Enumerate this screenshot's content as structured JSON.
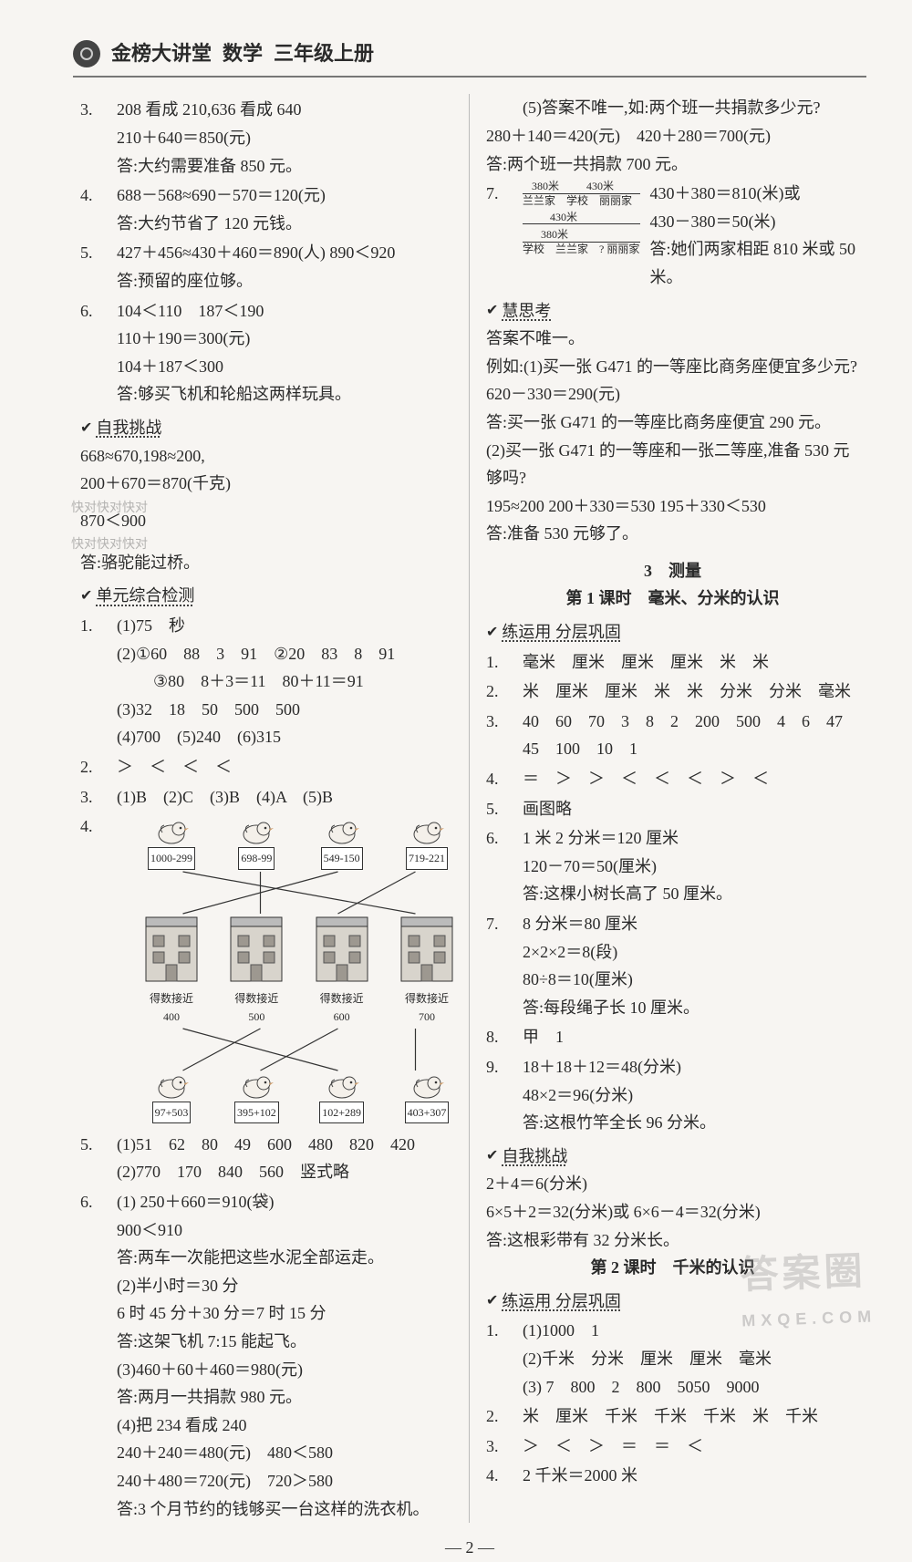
{
  "header": {
    "brand": "金榜大讲堂",
    "subject": "数学",
    "grade": "三年级上册"
  },
  "left": {
    "q3": {
      "l1": "208 看成 210,636 看成 640",
      "l2": "210＋640＝850(元)",
      "l3": "答:大约需要准备 850 元。"
    },
    "q4": {
      "l1": "688－568≈690－570＝120(元)",
      "l2": "答:大约节省了 120 元钱。"
    },
    "q5": {
      "l1": "427＋456≈430＋460＝890(人) 890＜920",
      "l2": "答:预留的座位够。"
    },
    "q6": {
      "l1": "104＜110　187＜190",
      "l2": "110＋190＝300(元)",
      "l3": "104＋187＜300",
      "l4": "答:够买飞机和轮船这两样玩具。"
    },
    "selfChallenge": {
      "hdr": "自我挑战",
      "l1": "668≈670,198≈200,",
      "l2": "200＋670＝870(千克)",
      "ghost1": "快对快对快对",
      "l3": "870＜900",
      "ghost2": "快对快对快对",
      "l4": "答:骆驼能过桥。"
    },
    "unitTest": {
      "hdr": "单元综合检测",
      "q1": {
        "a": "(1)75　秒",
        "b": "(2)①60　88　3　91　②20　83　8　91",
        "c": "③80　8＋3＝11　80＋11＝91",
        "d": "(3)32　18　50　500　500",
        "e": "(4)700　(5)240　(6)315"
      },
      "q2": "＞　＜　＜　＜",
      "q3": "(1)B　(2)C　(3)B　(4)A　(5)B",
      "q4": {
        "topLabels": [
          "1000-299",
          "698-99",
          "549-150",
          "719-221"
        ],
        "midLabels": [
          "得数接近400",
          "得数接近500",
          "得数接近600",
          "得数接近700"
        ],
        "botLabels": [
          "97+503",
          "395+102",
          "102+289",
          "403+307"
        ],
        "matchesTop": [
          [
            0,
            3
          ],
          [
            1,
            1
          ],
          [
            2,
            0
          ],
          [
            3,
            2
          ]
        ],
        "matchesBot": [
          [
            0,
            1
          ],
          [
            1,
            2
          ],
          [
            2,
            0
          ],
          [
            3,
            3
          ]
        ],
        "colors": {
          "line": "#333",
          "chickFill": "#f4f0ea",
          "chickStroke": "#444"
        }
      },
      "q5": {
        "a": "(1)51　62　80　49　600　480　820　420",
        "b": "(2)770　170　840　560　竖式略"
      },
      "q6": {
        "a1": "(1) 250＋660＝910(袋)",
        "a2": "900＜910",
        "a3": "答:两车一次能把这些水泥全部运走。",
        "b1": "(2)半小时＝30 分",
        "b2": "6 时 45 分＋30 分＝7 时 15 分",
        "b3": "答:这架飞机 7:15 能起飞。",
        "c1": "(3)460＋60＋460＝980(元)",
        "c2": "答:两月一共捐款 980 元。",
        "d1": "(4)把 234 看成 240",
        "d2": "240＋240＝480(元)　480＜580",
        "d3": "240＋480＝720(元)　720＞580",
        "d4": "答:3 个月节约的钱够买一台这样的洗衣机。"
      }
    }
  },
  "right": {
    "cont5": {
      "l1": "(5)答案不唯一,如:两个班一共捐款多少元?",
      "l2": "280＋140＝420(元)　420＋280＝700(元)",
      "l3": "答:两个班一共捐款 700 元。"
    },
    "q7": {
      "diagram": {
        "d380a": "380米",
        "d430a": "430米",
        "row1": "兰兰家　学校　丽丽家",
        "d430b": "430米",
        "d380b": "380米",
        "row2": "学校　兰兰家　? 丽丽家"
      },
      "r1": "430＋380＝810(米)或",
      "r2": "430－380＝50(米)",
      "r3": "答:她们两家相距 810 米或 50 米。"
    },
    "huisikao": {
      "hdr": "慧思考",
      "l1": "答案不唯一。",
      "l2": "例如:(1)买一张 G471 的一等座比商务座便宜多少元?",
      "l3": "620－330＝290(元)",
      "l4": "答:买一张 G471 的一等座比商务座便宜 290 元。",
      "l5": "(2)买一张 G471 的一等座和一张二等座,准备 530 元够吗?",
      "l6": "195≈200 200＋330＝530 195＋330＜530",
      "l7": "答:准备 530 元够了。"
    },
    "unit3": {
      "title": "3　测量",
      "lesson1": "第 1 课时　毫米、分米的认识",
      "practiceHdr": "练运用 分层巩固",
      "q1": "毫米　厘米　厘米　厘米　米　米",
      "q2": "米　厘米　厘米　米　米　分米　分米　毫米",
      "q3a": "40　60　70　3　8　2　200　500　4　6　47",
      "q3b": "45　100　10　1",
      "q4": "＝　＞　＞　＜　＜　＜　＞　＜",
      "q5": "画图略",
      "q6a": "1 米 2 分米＝120 厘米",
      "q6b": "120－70＝50(厘米)",
      "q6c": "答:这棵小树长高了 50 厘米。",
      "q7a": "8 分米＝80 厘米",
      "q7b": "2×2×2＝8(段)",
      "q7c": "80÷8＝10(厘米)",
      "q7d": "答:每段绳子长 10 厘米。",
      "q8": "甲　1",
      "q9a": "18＋18＋12＝48(分米)",
      "q9b": "48×2＝96(分米)",
      "q9c": "答:这根竹竿全长 96 分米。",
      "selfHdr": "自我挑战",
      "s1": "2＋4＝6(分米)",
      "s2": "6×5＋2＝32(分米)或 6×6－4＝32(分米)",
      "s3": "答:这根彩带有 32 分米长。",
      "lesson2": "第 2 课时　千米的认识",
      "l2practiceHdr": "练运用 分层巩固",
      "l2q1a": "(1)1000　1",
      "l2q1b": "(2)千米　分米　厘米　厘米　毫米",
      "l2q1c": "(3) 7　800　2　800　5050　9000",
      "l2q2": "米　厘米　千米　千米　千米　米　千米",
      "l2q3": "＞　＜　＞　＝　＝　＜",
      "l2q4": "2 千米＝2000 米"
    }
  },
  "pagenum": "— 2 —",
  "watermark": {
    "big": "答案圈",
    "small": "MXQE.COM"
  }
}
